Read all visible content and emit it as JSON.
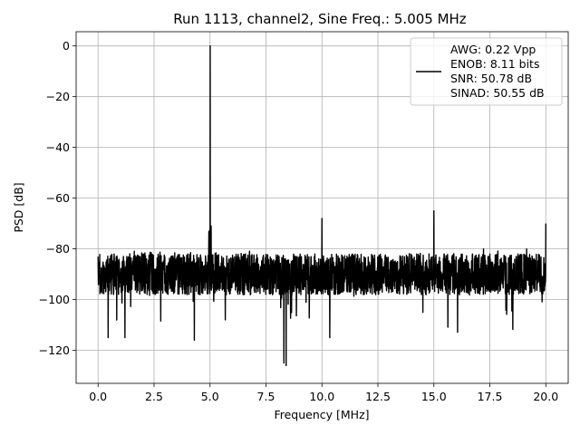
{
  "chart_data": {
    "type": "line",
    "title": "Run 1113, channel2, Sine Freq.: 5.005 MHz",
    "xlabel": "Frequency [MHz]",
    "ylabel": "PSD [dB]",
    "xlim": [
      -0.98,
      21.0
    ],
    "ylim": [
      -133,
      5.6
    ],
    "xticks": [
      0.0,
      2.5,
      5.0,
      7.5,
      10.0,
      12.5,
      15.0,
      17.5,
      20.0
    ],
    "xtick_labels": [
      "0.0",
      "2.5",
      "5.0",
      "7.5",
      "10.0",
      "12.5",
      "15.0",
      "17.5",
      "20.0"
    ],
    "yticks": [
      0,
      -20,
      -40,
      -60,
      -80,
      -100,
      -120
    ],
    "ytick_labels": [
      "0",
      "−20",
      "−40",
      "−60",
      "−80",
      "−100",
      "−120"
    ],
    "grid": true,
    "legend_position": "top-right",
    "legend_entries": [
      "AWG: 0.22 Vpp",
      "ENOB: 8.11 bits",
      "SNR: 50.78 dB",
      "SINAD: 50.55 dB"
    ],
    "series": [
      {
        "color": "#000000",
        "noise_floor_db": -90,
        "noise_range_db": [
          -98,
          -80
        ],
        "x_range": [
          0.0,
          20.0
        ],
        "peaks": [
          {
            "x": 5.005,
            "y": 0
          },
          {
            "x": 10.0,
            "y": -68
          },
          {
            "x": 15.0,
            "y": -65
          },
          {
            "x": 20.0,
            "y": -70
          },
          {
            "x": 5.05,
            "y": -71
          },
          {
            "x": 4.95,
            "y": -73
          }
        ],
        "dips": [
          {
            "x": 8.3,
            "y": -125
          },
          {
            "x": 8.4,
            "y": -126
          },
          {
            "x": 4.3,
            "y": -116
          },
          {
            "x": 0.45,
            "y": -115
          },
          {
            "x": 1.2,
            "y": -115
          },
          {
            "x": 10.35,
            "y": -115
          }
        ]
      }
    ]
  }
}
